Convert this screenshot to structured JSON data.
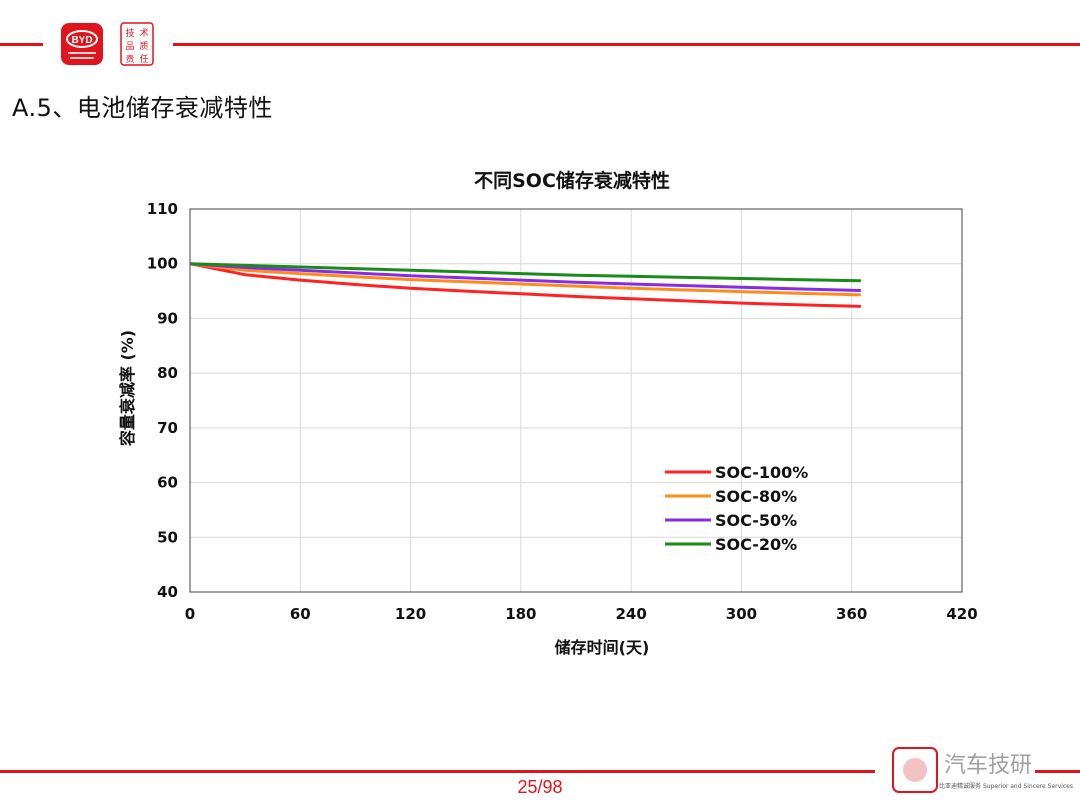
{
  "header": {
    "brand_text": "BYD",
    "seal_text": "技术品质责任",
    "slide_title": "A.5、电池储存衰减特性"
  },
  "footer": {
    "page_number": "25/98",
    "watermark_text": "汽车技研",
    "watermark_subtext": "比亚迪精诚服务 Superior and Sincere Services"
  },
  "colors": {
    "accent": "#e0151b",
    "soc100": "#ff2222",
    "soc80": "#ff8c1a",
    "soc50": "#8a2be2",
    "soc20": "#1a8a1a"
  },
  "chart_data": {
    "type": "line",
    "title": "不同SOC储存衰减特性",
    "xlabel": "储存时间(天)",
    "ylabel": "容量衰减率 (%)",
    "xlim": [
      0,
      420
    ],
    "ylim": [
      40,
      110
    ],
    "xticks": [
      0,
      60,
      120,
      180,
      240,
      300,
      360,
      420
    ],
    "yticks": [
      40,
      50,
      60,
      70,
      80,
      90,
      100,
      110
    ],
    "grid": true,
    "legend_position": "bottom-right",
    "x": [
      0,
      30,
      60,
      90,
      120,
      150,
      180,
      210,
      240,
      270,
      300,
      330,
      365
    ],
    "series": [
      {
        "name": "SOC-100%",
        "color": "#ff2222",
        "values": [
          100,
          98.0,
          97.0,
          96.2,
          95.5,
          95.0,
          94.5,
          94.0,
          93.6,
          93.2,
          92.8,
          92.5,
          92.2
        ]
      },
      {
        "name": "SOC-80%",
        "color": "#ff8c1a",
        "values": [
          100,
          98.8,
          98.2,
          97.6,
          97.1,
          96.7,
          96.3,
          95.9,
          95.5,
          95.2,
          94.9,
          94.6,
          94.3
        ]
      },
      {
        "name": "SOC-50%",
        "color": "#8a2be2",
        "values": [
          100,
          99.3,
          98.8,
          98.3,
          97.8,
          97.4,
          97.0,
          96.6,
          96.3,
          96.0,
          95.7,
          95.4,
          95.1
        ]
      },
      {
        "name": "SOC-20%",
        "color": "#1a8a1a",
        "values": [
          100,
          99.7,
          99.4,
          99.1,
          98.8,
          98.5,
          98.2,
          97.9,
          97.7,
          97.5,
          97.3,
          97.1,
          96.9
        ]
      }
    ]
  }
}
